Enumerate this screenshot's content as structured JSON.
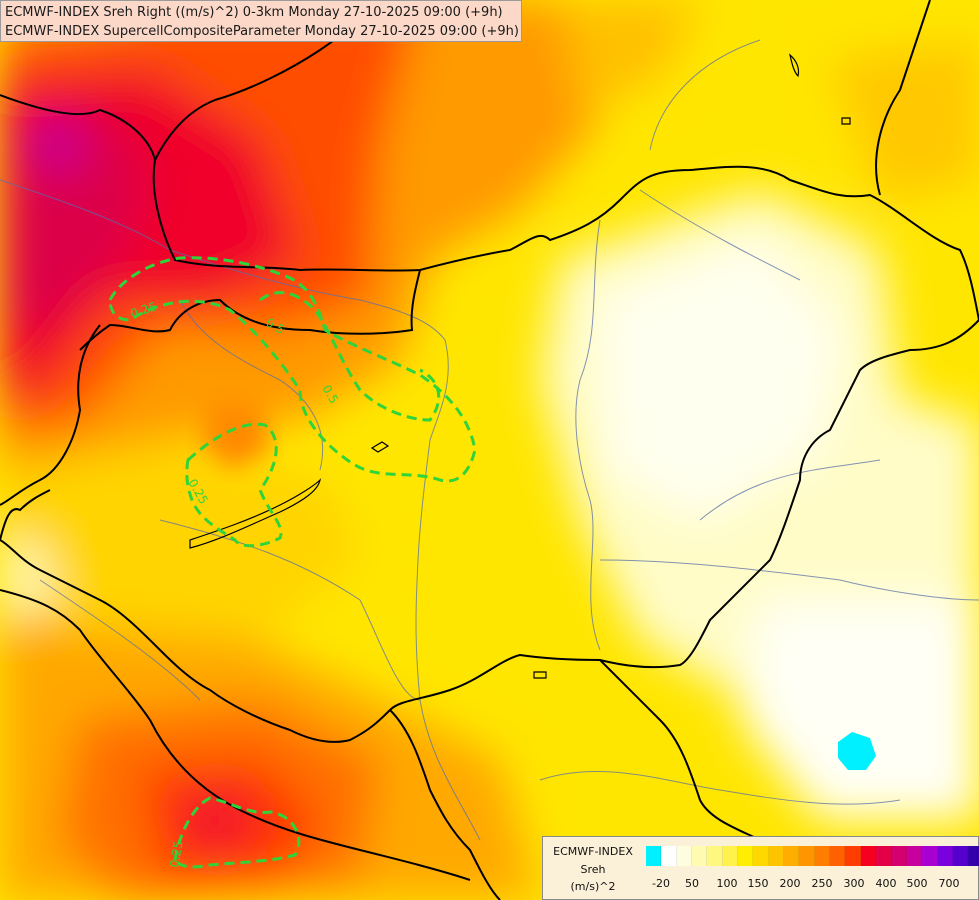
{
  "header": {
    "line1": "ECMWF-INDEX Sreh Right ((m/s)^2) 0-3km Monday 27-10-2025 09:00 (+9h)",
    "line2": "ECMWF-INDEX SupercellCompositeParameter Monday 27-10-2025 09:00 (+9h)"
  },
  "legend": {
    "line1": "ECMWF-INDEX",
    "line2": "Sreh",
    "line3": "(m/s)^2",
    "ticks": [
      "-20",
      "50",
      "100",
      "150",
      "200",
      "250",
      "300",
      "400",
      "500",
      "700"
    ],
    "colors": [
      "#00f0ff",
      "#ffffff",
      "#fffde0",
      "#fffbb0",
      "#fff880",
      "#fff24a",
      "#ffee00",
      "#ffd800",
      "#ffc400",
      "#ffae00",
      "#ff9600",
      "#ff7d00",
      "#ff6000",
      "#ff3d00",
      "#f5001f",
      "#e40046",
      "#d5006f",
      "#c8009d",
      "#a800d0",
      "#7a00dd",
      "#5500cc",
      "#3300aa",
      "#150080",
      "#0c0060"
    ]
  },
  "contour_labels": [
    "0.25",
    "0.5",
    "0.25",
    "0.5",
    "0.25"
  ]
}
